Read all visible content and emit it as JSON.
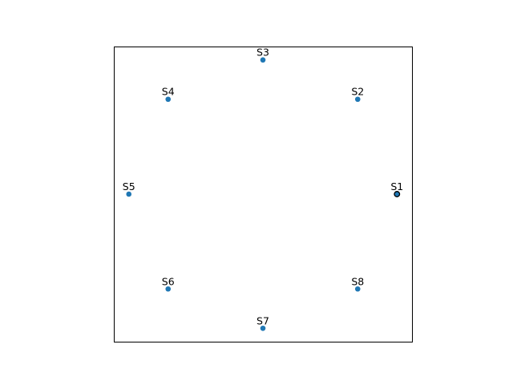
{
  "chart_data": {
    "type": "scatter",
    "title": "",
    "xlabel": "",
    "ylabel": "",
    "grid": false,
    "legend": "none",
    "axes_ticks": false,
    "xlim": [
      -1.1,
      1.1
    ],
    "ylim": [
      -1.1,
      1.1
    ],
    "aspect": "equal",
    "marker_color": "#1f77b4",
    "highlight_edge_color": "#000000",
    "points": [
      {
        "label": "S1",
        "x": 1.0,
        "y": 0.0,
        "highlighted": true
      },
      {
        "label": "S2",
        "x": 0.707,
        "y": 0.707,
        "highlighted": false
      },
      {
        "label": "S3",
        "x": 0.0,
        "y": 1.0,
        "highlighted": false
      },
      {
        "label": "S4",
        "x": -0.707,
        "y": 0.707,
        "highlighted": false
      },
      {
        "label": "S5",
        "x": -1.0,
        "y": 0.0,
        "highlighted": false
      },
      {
        "label": "S6",
        "x": -0.707,
        "y": -0.707,
        "highlighted": false
      },
      {
        "label": "S7",
        "x": 0.0,
        "y": -1.0,
        "highlighted": false
      },
      {
        "label": "S8",
        "x": 0.707,
        "y": -0.707,
        "highlighted": false
      }
    ]
  }
}
